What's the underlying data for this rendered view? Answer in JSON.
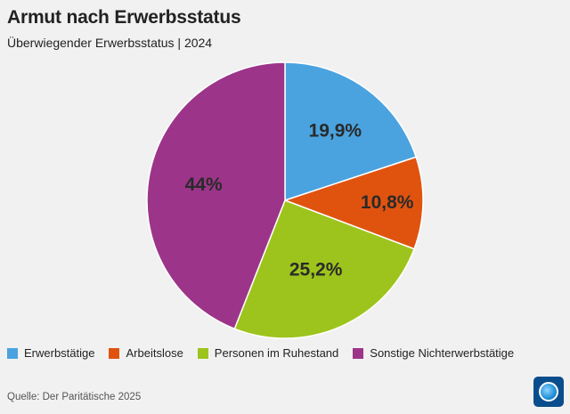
{
  "header": {
    "title": "Armut nach Erwerbsstatus",
    "subtitle": "Überwiegender Erwerbsstatus | 2024"
  },
  "chart_data": {
    "type": "pie",
    "title": "Armut nach Erwerbsstatus",
    "subtitle": "Überwiegender Erwerbsstatus | 2024",
    "categories": [
      "Erwerbstätige",
      "Arbeitslose",
      "Personen im Ruhestand",
      "Sonstige Nichterwerbstätige"
    ],
    "values": [
      19.9,
      10.8,
      25.2,
      44
    ],
    "labels": [
      "19,9%",
      "10,8%",
      "25,2%",
      "44%"
    ],
    "colors": [
      "#4aa3df",
      "#e0530f",
      "#9dc41c",
      "#9c3589"
    ],
    "legend_position": "bottom"
  },
  "footer": {
    "source": "Quelle: Der Paritätische 2025",
    "logo_icon": "tagesschau-logo-icon"
  }
}
